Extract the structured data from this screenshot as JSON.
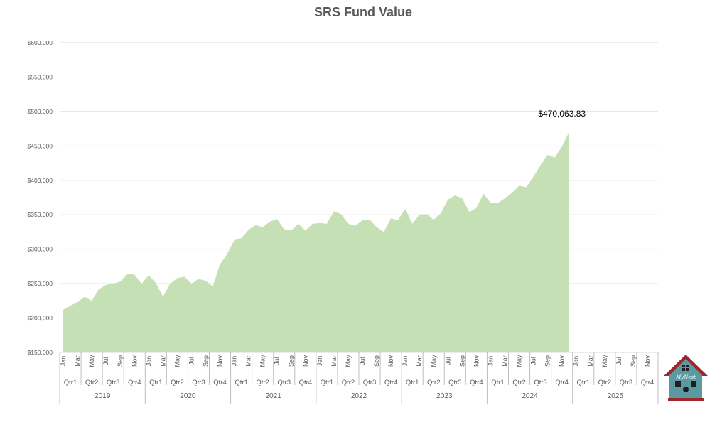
{
  "chart_data": {
    "type": "area",
    "title": "SRS Fund Value",
    "xlabel": "",
    "ylabel": "",
    "ylim": [
      150000,
      600000
    ],
    "yticks": [
      "$150,000",
      "$200,000",
      "$250,000",
      "$300,000",
      "$350,000",
      "$400,000",
      "$450,000",
      "$500,000",
      "$550,000",
      "$600,000"
    ],
    "grid": true,
    "legend": "none",
    "colors": {
      "area": "#c5e0b4",
      "grid": "#d9d9d9",
      "title": "#595959"
    },
    "month_labels": [
      "Jan",
      "Mar",
      "May",
      "Jul",
      "Sep",
      "Nov"
    ],
    "quarter_labels": [
      "Qtr1",
      "Qtr2",
      "Qtr3",
      "Qtr4"
    ],
    "years": [
      "2019",
      "2020",
      "2021",
      "2022",
      "2023",
      "2024",
      "2025"
    ],
    "series": [
      {
        "values": [
          212000,
          218000,
          223000,
          231000,
          225000,
          242000,
          248000,
          250000,
          253000,
          264000,
          263000,
          250000,
          262000,
          251000,
          231000,
          250000,
          258000,
          260000,
          250000,
          257000,
          254000,
          246000,
          278000,
          293000,
          313000,
          316000,
          328000,
          335000,
          332000,
          340000,
          344000,
          329000,
          327000,
          337000,
          327000,
          337000,
          338000,
          337000,
          355000,
          351000,
          337000,
          334000,
          342000,
          343000,
          332000,
          325000,
          345000,
          342000,
          359000,
          337000,
          350000,
          351000,
          343000,
          352000,
          372000,
          378000,
          374000,
          354000,
          360000,
          381000,
          367000,
          367000,
          374000,
          382000,
          392000,
          390000,
          405000,
          422000,
          437000,
          433000,
          449000,
          470063.83
        ]
      }
    ],
    "annotations": [
      {
        "text": "$470,063.83",
        "value": 470063.83
      }
    ]
  }
}
